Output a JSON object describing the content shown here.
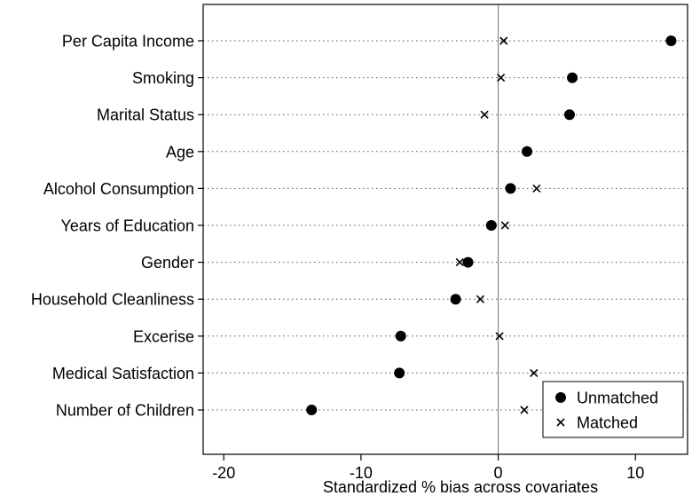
{
  "chart_data": {
    "type": "scatter",
    "title": "",
    "xlabel": "Standardized % bias across covariates",
    "ylabel": "",
    "xlim": [
      -21.5,
      13.8
    ],
    "xticks": [
      -20,
      -10,
      0,
      10
    ],
    "categories": [
      "Per Capita Income",
      "Smoking",
      "Marital Status",
      "Age",
      "Alcohol Consumption",
      "Years of Education",
      "Gender",
      "Household Cleanliness",
      "Excerise",
      "Medical Satisfaction",
      "Number of Children"
    ],
    "series": [
      {
        "name": "Unmatched",
        "marker": "dot",
        "values": [
          12.6,
          5.4,
          5.2,
          2.1,
          0.9,
          -0.5,
          -2.2,
          -3.1,
          -7.1,
          -7.2,
          -13.6
        ]
      },
      {
        "name": "Matched",
        "marker": "x",
        "values": [
          0.4,
          0.2,
          -1.0,
          null,
          2.8,
          0.5,
          -2.8,
          -1.3,
          0.1,
          2.6,
          1.9
        ]
      }
    ],
    "legend": "bottom-right",
    "reference_line": 0
  }
}
